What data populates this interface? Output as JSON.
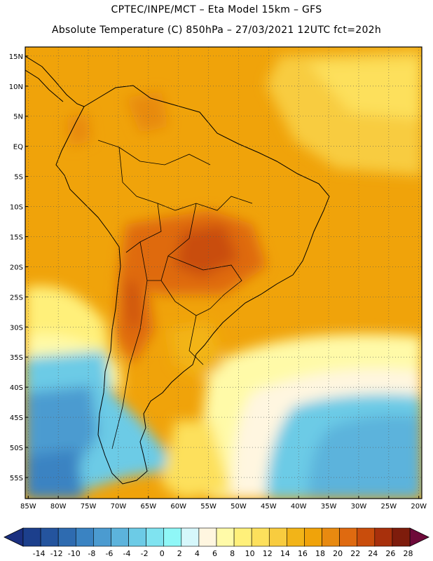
{
  "header": {
    "line1": "CPTEC/INPE/MCT –  Eta Model 15km – GFS",
    "line2": "Absolute Temperature (C) 850hPa – 27/03/2021 12UTC fct=202h"
  },
  "axes": {
    "lat_labels": [
      "15N",
      "10N",
      "5N",
      "EQ",
      "5S",
      "10S",
      "15S",
      "20S",
      "25S",
      "30S",
      "35S",
      "40S",
      "45S",
      "50S",
      "55S"
    ],
    "lat_values": [
      15,
      10,
      5,
      0,
      -5,
      -10,
      -15,
      -20,
      -25,
      -30,
      -35,
      -40,
      -45,
      -50,
      -55
    ],
    "lon_labels": [
      "85W",
      "80W",
      "75W",
      "70W",
      "65W",
      "60W",
      "55W",
      "50W",
      "45W",
      "40W",
      "35W",
      "30W",
      "25W",
      "20W"
    ],
    "lon_values": [
      -85,
      -80,
      -75,
      -70,
      -65,
      -60,
      -55,
      -50,
      -45,
      -40,
      -35,
      -30,
      -25,
      -20
    ],
    "lon_range": [
      -85.5,
      -19.5
    ],
    "lat_range": [
      -58.5,
      16.5
    ]
  },
  "colorbar": {
    "labels": [
      "-14",
      "-12",
      "-10",
      "-8",
      "-6",
      "-4",
      "-2",
      "0",
      "2",
      "4",
      "6",
      "8",
      "10",
      "12",
      "14",
      "16",
      "18",
      "20",
      "22",
      "24",
      "26",
      "28"
    ],
    "colors": [
      "#1c3f8c",
      "#24549e",
      "#2e6bb0",
      "#3a83c2",
      "#4b9bd0",
      "#5cb3dc",
      "#6ccbe6",
      "#7fe3f0",
      "#8ff7f7",
      "#d6f7fb",
      "#fff6e0",
      "#fffaa8",
      "#fff07a",
      "#fde05c",
      "#f8cc3f",
      "#f2b418",
      "#f0a30a",
      "#e88a10",
      "#df6a10",
      "#c94d0c",
      "#a8300c",
      "#7e1c0c"
    ],
    "under_color": "#1a2f80",
    "over_color": "#6e0a3a"
  }
}
